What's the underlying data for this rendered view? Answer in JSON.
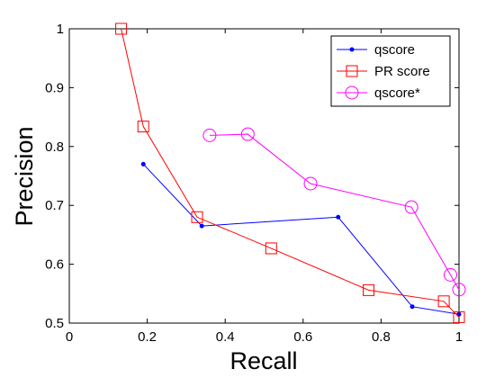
{
  "chart_data": {
    "type": "line",
    "xlabel": "Recall",
    "ylabel": "Precision",
    "xlim": [
      0,
      1
    ],
    "ylim": [
      0.5,
      1
    ],
    "x_ticks": [
      0,
      0.2,
      0.4,
      0.6,
      0.8,
      1
    ],
    "y_ticks": [
      0.5,
      0.6,
      0.7,
      0.8,
      0.9,
      1
    ],
    "x_tick_labels": [
      "0",
      "0.2",
      "0.4",
      "0.6",
      "0.8",
      "1"
    ],
    "y_tick_labels": [
      "0.5",
      "0.6",
      "0.7",
      "0.8",
      "0.9",
      "1"
    ],
    "grid": false,
    "legend_position": "top-right",
    "series": [
      {
        "name": "qscore",
        "color": "#0000ff",
        "marker": "dot",
        "x": [
          0.19,
          0.34,
          0.69,
          0.88,
          1.0
        ],
        "y": [
          0.77,
          0.665,
          0.68,
          0.528,
          0.515
        ]
      },
      {
        "name": "PR score",
        "color": "#ff0000",
        "marker": "square",
        "x": [
          0.133,
          0.19,
          0.328,
          0.518,
          0.768,
          0.961,
          1.0
        ],
        "y": [
          1.0,
          0.834,
          0.68,
          0.627,
          0.556,
          0.537,
          0.51
        ]
      },
      {
        "name": "qscore*",
        "color": "#ff00ff",
        "marker": "circle",
        "x": [
          0.36,
          0.458,
          0.619,
          0.878,
          0.978,
          1.0
        ],
        "y": [
          0.819,
          0.821,
          0.737,
          0.697,
          0.582,
          0.557
        ]
      }
    ]
  }
}
